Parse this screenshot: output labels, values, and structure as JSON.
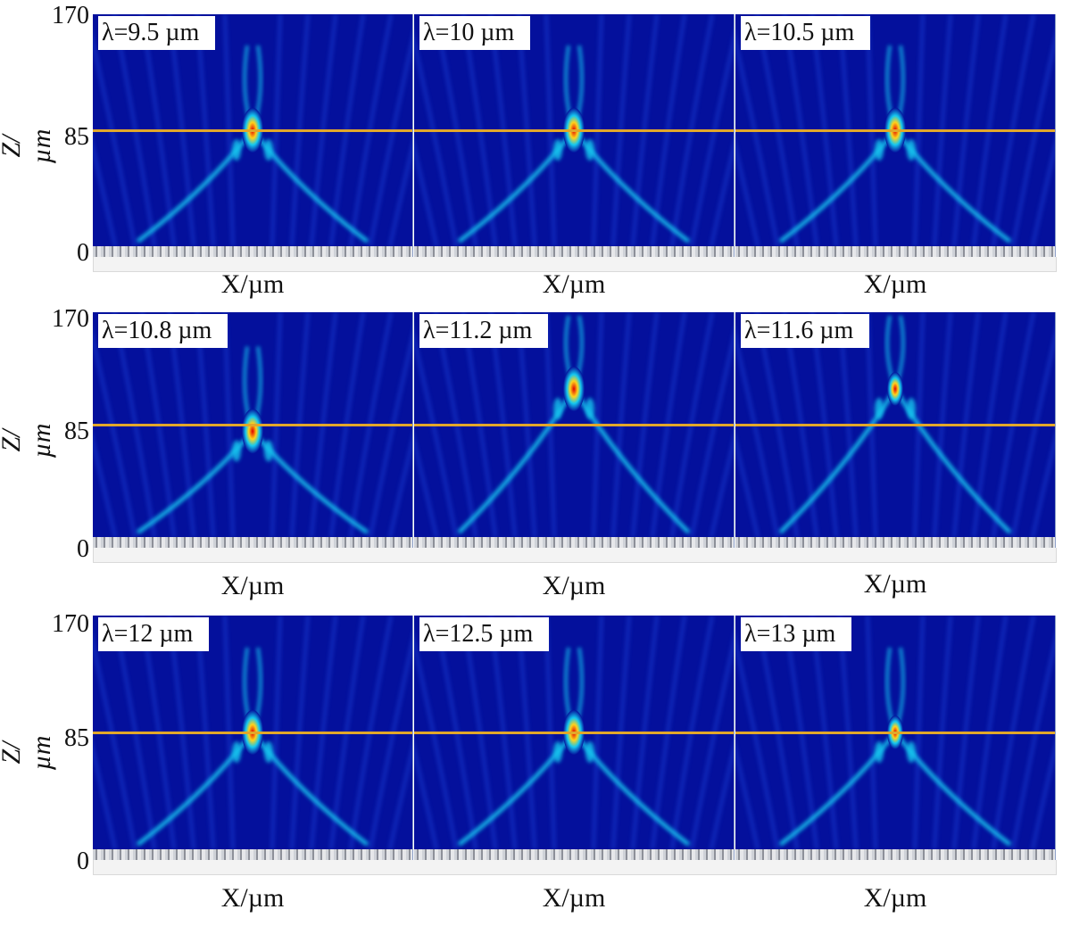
{
  "z_axis": {
    "label": "Z/µm",
    "ticks": [
      "170",
      "85",
      "0"
    ]
  },
  "x_axis": {
    "label": "X/µm"
  },
  "colors": {
    "background": "#04109c",
    "focal_line": "#e2a72a",
    "hotspot": "#e00000",
    "beam": "#15c8f0"
  },
  "rows": [
    {
      "panels": [
        {
          "wavelength": "λ=9.5 µm",
          "focus_z": 85,
          "intensity": "high"
        },
        {
          "wavelength": "λ=10 µm",
          "focus_z": 85,
          "intensity": "high"
        },
        {
          "wavelength": "λ=10.5 µm",
          "focus_z": 85,
          "intensity": "high"
        }
      ]
    },
    {
      "panels": [
        {
          "wavelength": "λ=10.8 µm",
          "focus_z": 80,
          "intensity": "high"
        },
        {
          "wavelength": "λ=11.2 µm",
          "focus_z": 112,
          "intensity": "high"
        },
        {
          "wavelength": "λ=11.6 µm",
          "focus_z": 112,
          "intensity": "medium"
        }
      ]
    },
    {
      "panels": [
        {
          "wavelength": "λ=12 µm",
          "focus_z": 85,
          "intensity": "high"
        },
        {
          "wavelength": "λ=12.5 µm",
          "focus_z": 85,
          "intensity": "high"
        },
        {
          "wavelength": "λ=13 µm",
          "focus_z": 85,
          "intensity": "medium"
        }
      ]
    }
  ]
}
